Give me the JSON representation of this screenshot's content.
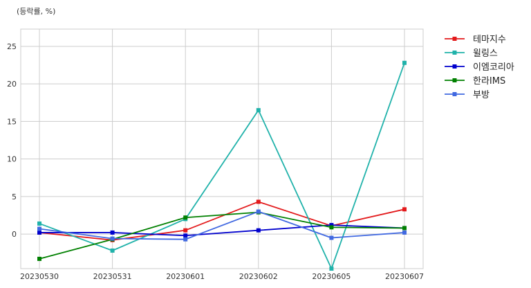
{
  "chart_data": {
    "type": "line",
    "title": "",
    "xlabel": "",
    "ylabel": "(등락률, %)",
    "categories": [
      "20230530",
      "20230531",
      "20230601",
      "20230602",
      "20230605",
      "20230607"
    ],
    "ylim": [
      -4.6,
      27.3
    ],
    "yticks": [
      0,
      5,
      10,
      15,
      20,
      25
    ],
    "grid": true,
    "legend_position": "outside-top-right",
    "series": [
      {
        "name": "테마지수",
        "color": "#e31a1c",
        "values": [
          0.2,
          -0.8,
          0.5,
          4.3,
          1.1,
          3.3
        ]
      },
      {
        "name": "윌링스",
        "color": "#20b2aa",
        "values": [
          1.4,
          -2.2,
          2.0,
          16.5,
          -4.6,
          22.8
        ]
      },
      {
        "name": "이엠코리아",
        "color": "#0000cd",
        "values": [
          0.2,
          0.2,
          -0.2,
          0.5,
          1.2,
          0.8
        ]
      },
      {
        "name": "한라IMS",
        "color": "#008000",
        "values": [
          -3.3,
          -0.7,
          2.2,
          2.9,
          0.9,
          0.8
        ]
      },
      {
        "name": "부방",
        "color": "#4169e1",
        "values": [
          0.7,
          -0.6,
          -0.7,
          3.0,
          -0.5,
          0.2
        ]
      }
    ]
  }
}
